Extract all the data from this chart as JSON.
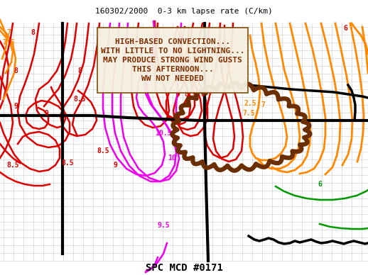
{
  "title": "160302/2000  0-3 km lapse rate (C/km)",
  "footer": "SPC MCD #0171",
  "annotation_lines": [
    "HIGH-BASED CONVECTION...",
    "WITH LITTLE TO NO LIGHTNING...",
    "MAY PRODUCE STRONG WIND GUSTS",
    "THIS AFTERNOON...",
    "WW NOT NEEDED"
  ],
  "annotation_color": "#7B2D00",
  "bg_color": "#ffffff",
  "map_line_color": "#bbbbbb",
  "red_color": "#dd0000",
  "orange_color": "#ff8800",
  "magenta_color": "#ee00ee",
  "green_color": "#009900",
  "brown_color": "#6B2E00",
  "black_color": "#000000",
  "title_fontsize": 8,
  "footer_fontsize": 10,
  "label_fontsize": 7
}
